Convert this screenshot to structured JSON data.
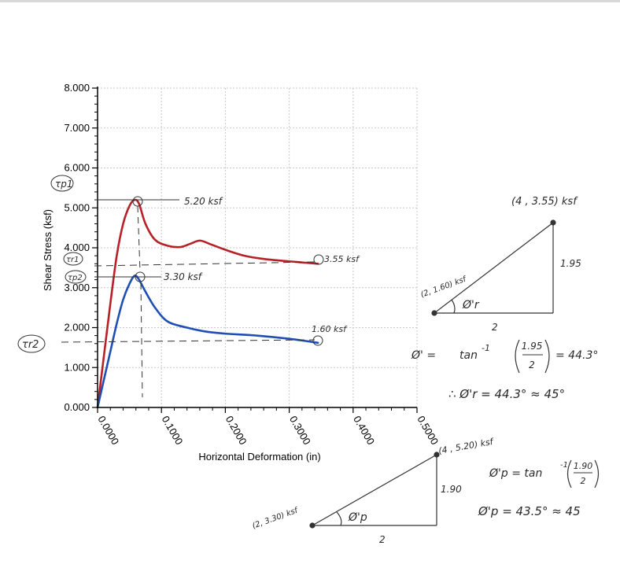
{
  "chart_data": {
    "type": "line",
    "xlabel": "Horizontal Deformation (in)",
    "ylabel": "Shear Stress (ksf)",
    "xlim": [
      0,
      0.5
    ],
    "ylim": [
      0,
      8
    ],
    "x_ticks": [
      "0.0000",
      "0.1000",
      "0.2000",
      "0.3000",
      "0.4000",
      "0.5000"
    ],
    "y_ticks": [
      "0.000",
      "1.000",
      "2.000",
      "3.000",
      "4.000",
      "5.000",
      "6.000",
      "7.000",
      "8.000"
    ],
    "grid": true,
    "series": [
      {
        "color": "#b52127",
        "x": [
          0,
          0.01,
          0.02,
          0.03,
          0.04,
          0.05,
          0.058,
          0.065,
          0.075,
          0.09,
          0.11,
          0.13,
          0.145,
          0.16,
          0.175,
          0.2,
          0.23,
          0.26,
          0.3,
          0.345
        ],
        "y": [
          0,
          1.3,
          2.6,
          3.8,
          4.6,
          5.05,
          5.2,
          5.1,
          4.6,
          4.2,
          4.05,
          4.02,
          4.1,
          4.18,
          4.1,
          3.95,
          3.8,
          3.72,
          3.66,
          3.6
        ]
      },
      {
        "color": "#1f4fb5",
        "x": [
          0,
          0.01,
          0.02,
          0.03,
          0.04,
          0.05,
          0.058,
          0.065,
          0.075,
          0.09,
          0.11,
          0.14,
          0.17,
          0.2,
          0.25,
          0.3,
          0.345
        ],
        "y": [
          0,
          0.7,
          1.4,
          2.1,
          2.7,
          3.1,
          3.3,
          3.2,
          2.9,
          2.5,
          2.15,
          2.0,
          1.9,
          1.85,
          1.8,
          1.72,
          1.62
        ]
      }
    ]
  },
  "annotations": {
    "tau_p1": "τp1",
    "tau_r1": "τr1",
    "tau_p2": "τp2",
    "tau_r2": "τr2",
    "peak1": "5.20 ksf",
    "peak2": "3.30 ksf",
    "residual1": "3.55 ksf",
    "residual2": "1.60 ksf"
  },
  "residual_calc": {
    "point_top": "(4 , 3.55) ksf",
    "point_left": "(2, 1.60) ksf",
    "rise": "1.95",
    "run": "2",
    "angle_label": "Ø'r",
    "formula_lhs": "Ø' =",
    "formula_tan": "tan",
    "formula_exp": "-1",
    "formula_num": "1.95",
    "formula_den": "2",
    "formula_result": "= 44.3°",
    "conclusion": "∴  Ø'r = 44.3° ≈ 45°"
  },
  "peak_calc": {
    "point_top": "(4 , 5.20) ksf",
    "point_left": "(2, 3.30) ksf",
    "rise": "1.90",
    "run": "2",
    "angle_label": "Ø'p",
    "formula_lhs": "Ø'p = tan",
    "formula_exp": "-1",
    "formula_num": "1.90",
    "formula_den": "2",
    "result": "Ø'p = 43.5° ≈ 45"
  }
}
